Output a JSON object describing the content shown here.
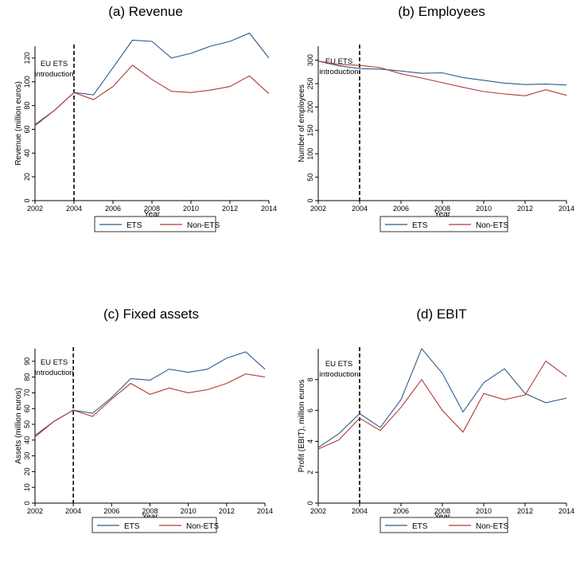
{
  "colors": {
    "ets": "#2f5a8c",
    "non_ets": "#b03a3a"
  },
  "chart_data": [
    {
      "type": "line",
      "title": "(a) Revenue",
      "xlabel": "Year",
      "ylabel": "Revenue (million euros)",
      "x": [
        2002,
        2003,
        2004,
        2005,
        2006,
        2007,
        2008,
        2009,
        2010,
        2011,
        2012,
        2013,
        2014
      ],
      "xticks": [
        "2002",
        "2004",
        "2006",
        "2008",
        "2010",
        "2012",
        "2014"
      ],
      "yticks": [
        "0",
        "20",
        "40",
        "60",
        "80",
        "100",
        "120"
      ],
      "ylim": [
        0,
        130
      ],
      "annotation": [
        "EU ETS",
        "introduction"
      ],
      "vline_x": 2004,
      "series": [
        {
          "name": "ETS",
          "values": [
            64,
            76,
            91,
            89,
            112,
            135,
            134,
            120,
            124,
            130,
            134,
            141,
            120
          ]
        },
        {
          "name": "Non-ETS",
          "values": [
            63,
            76,
            91,
            85,
            96,
            114,
            102,
            92,
            91,
            93,
            96,
            105,
            90
          ]
        }
      ],
      "legend": [
        "ETS",
        "Non-ETS"
      ]
    },
    {
      "type": "line",
      "title": "(b) Employees",
      "xlabel": "Year",
      "ylabel": "Number of employees",
      "x": [
        2002,
        2003,
        2004,
        2005,
        2006,
        2007,
        2008,
        2009,
        2010,
        2011,
        2012,
        2013,
        2014
      ],
      "xticks": [
        "2002",
        "2004",
        "2006",
        "2008",
        "2010",
        "2012",
        "2014"
      ],
      "yticks": [
        "0",
        "50",
        "100",
        "150",
        "200",
        "250",
        "300"
      ],
      "ylim": [
        0,
        330
      ],
      "annotation": [
        "EU ETS",
        "introduction"
      ],
      "vline_x": 2004,
      "series": [
        {
          "name": "ETS",
          "values": [
            298,
            288,
            282,
            281,
            277,
            272,
            273,
            263,
            257,
            251,
            248,
            249,
            247
          ]
        },
        {
          "name": "Non-ETS",
          "values": [
            298,
            291,
            289,
            284,
            271,
            262,
            252,
            242,
            233,
            228,
            224,
            237,
            225
          ]
        }
      ],
      "legend": [
        "ETS",
        "Non-ETS"
      ]
    },
    {
      "type": "line",
      "title": "(c) Fixed assets",
      "xlabel": "Year",
      "ylabel": "Assets (million euros)",
      "x": [
        2002,
        2003,
        2004,
        2005,
        2006,
        2007,
        2008,
        2009,
        2010,
        2011,
        2012,
        2013,
        2014
      ],
      "xticks": [
        "2002",
        "2004",
        "2006",
        "2008",
        "2010",
        "2012",
        "2014"
      ],
      "yticks": [
        "0",
        "10",
        "20",
        "30",
        "40",
        "50",
        "60",
        "70",
        "80",
        "90"
      ],
      "ylim": [
        0,
        98
      ],
      "annotation": [
        "EU ETS",
        "introduction"
      ],
      "vline_x": 2004,
      "series": [
        {
          "name": "ETS",
          "values": [
            43,
            52,
            59,
            57,
            67,
            79,
            78,
            85,
            83,
            85,
            92,
            96,
            85
          ]
        },
        {
          "name": "Non-ETS",
          "values": [
            42,
            52,
            59,
            55,
            66,
            76,
            69,
            73,
            70,
            72,
            76,
            82,
            80
          ]
        }
      ],
      "legend": [
        "ETS",
        "Non-ETS"
      ]
    },
    {
      "type": "line",
      "title": "(d) EBIT",
      "xlabel": "Year",
      "ylabel": "Profit (EBIT), million euros",
      "x": [
        2002,
        2003,
        2004,
        2005,
        2006,
        2007,
        2008,
        2009,
        2010,
        2011,
        2012,
        2013,
        2014
      ],
      "xticks": [
        "2002",
        "2004",
        "2006",
        "2008",
        "2010",
        "2012",
        "2014"
      ],
      "yticks": [
        "0",
        "2",
        "4",
        "6",
        "8"
      ],
      "ylim": [
        0,
        10
      ],
      "annotation": [
        "EU ETS",
        "introduction"
      ],
      "vline_x": 2004,
      "series": [
        {
          "name": "ETS",
          "values": [
            3.6,
            4.5,
            5.8,
            4.9,
            6.7,
            10.0,
            8.4,
            5.9,
            7.8,
            8.7,
            7.1,
            6.5,
            6.8
          ]
        },
        {
          "name": "Non-ETS",
          "values": [
            3.5,
            4.1,
            5.5,
            4.7,
            6.2,
            8.0,
            6.0,
            4.6,
            7.1,
            6.7,
            7.0,
            9.2,
            8.2
          ]
        }
      ],
      "legend": [
        "ETS",
        "Non-ETS"
      ]
    }
  ]
}
